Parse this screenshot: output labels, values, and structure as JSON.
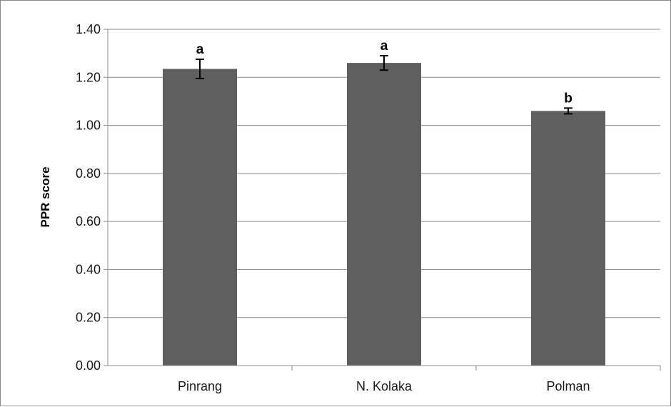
{
  "chart_data": {
    "type": "bar",
    "title": "",
    "xlabel": "",
    "ylabel": "PPR score",
    "ylim": [
      0,
      1.4
    ],
    "ytick_step": 0.2,
    "yticks": [
      "0.00",
      "0.20",
      "0.40",
      "0.60",
      "0.80",
      "1.00",
      "1.20",
      "1.40"
    ],
    "categories": [
      "Pinrang",
      "N. Kolaka",
      "Polman"
    ],
    "values": [
      1.235,
      1.26,
      1.06
    ],
    "error_bars": [
      0.04,
      0.03,
      0.012
    ],
    "significance_labels": [
      "a",
      "a",
      "b"
    ],
    "grid": true,
    "legend": "none",
    "colors": {
      "bar": "#5f5f5f",
      "grid": "#8c8c8c",
      "error_bar": "#000000"
    }
  }
}
